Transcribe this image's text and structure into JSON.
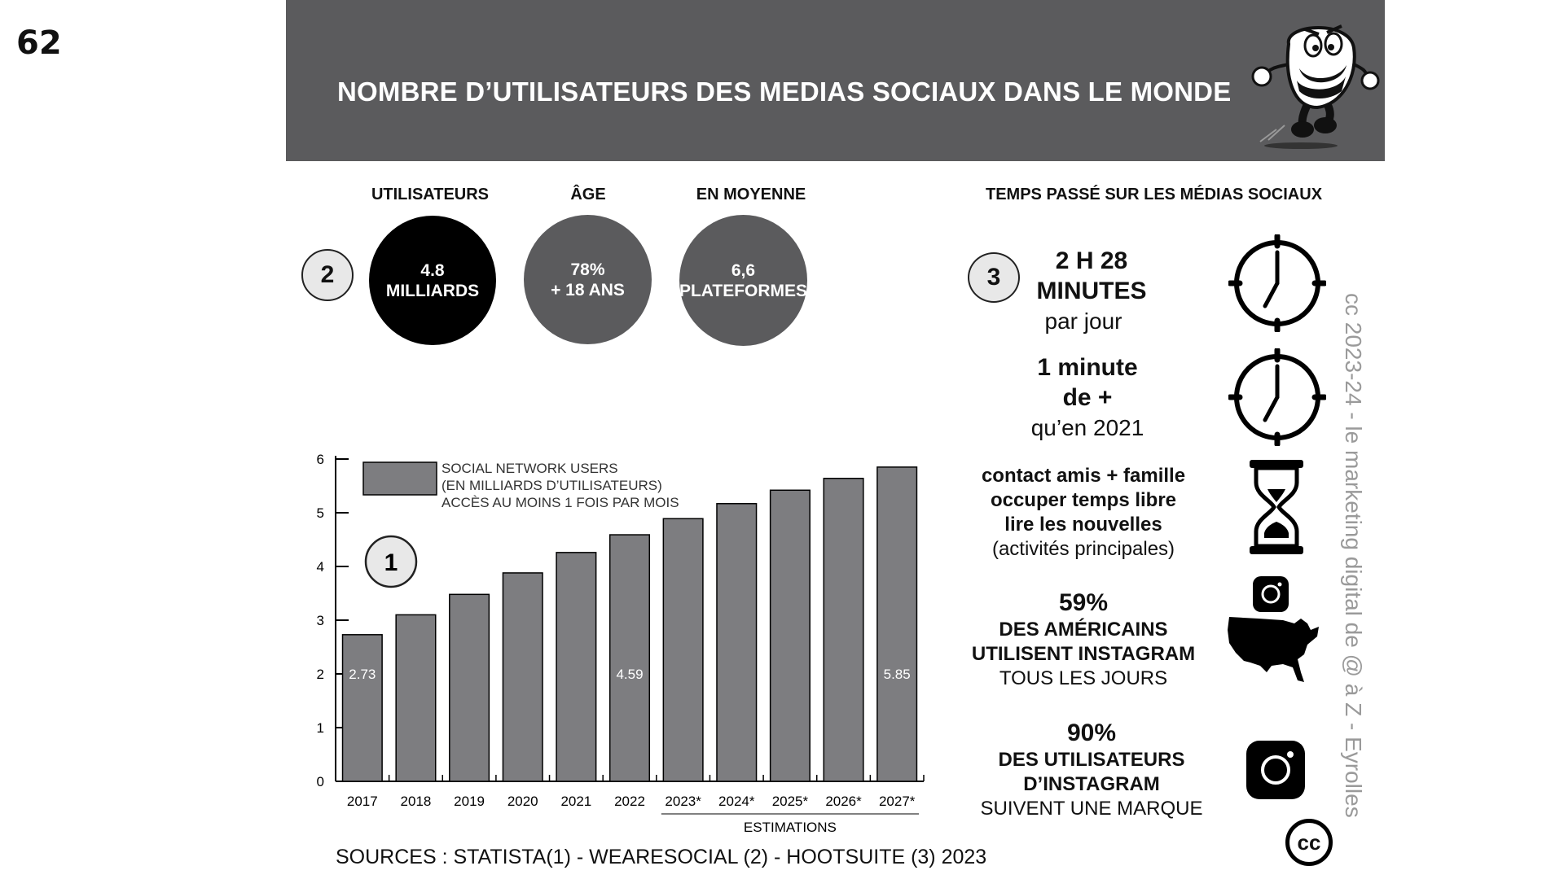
{
  "page_number": "62",
  "header": {
    "title": "NOMBRE D’UTILISATEURS DES MEDIAS SOCIAUX DANS LE MONDE"
  },
  "stats": {
    "badge": "2",
    "items": [
      {
        "label": "UTILISATEURS",
        "line1": "4.8",
        "line2": "MILLIARDS",
        "color": "#000000"
      },
      {
        "label": "ÂGE",
        "line1": "78%",
        "line2": "+ 18 ANS",
        "color": "#5b5b5d"
      },
      {
        "label": "EN MOYENNE",
        "line1": "6,6",
        "line2": "PLATEFORMES",
        "color": "#5b5b5d"
      }
    ]
  },
  "time": {
    "title": "TEMPS PASSÉ SUR LES MÉDIAS SOCIAUX",
    "badge": "3",
    "block1": {
      "line1": "2 H 28",
      "line2": "MINUTES",
      "line3": "par jour",
      "icon": "clock-icon"
    },
    "block2": {
      "line1": "1 minute",
      "line2": "de +",
      "line3": "qu’en 2021",
      "icon": "clock-icon"
    },
    "block3": {
      "line1": "contact amis + famille",
      "line2": "occuper temps libre",
      "line3": "lire les nouvelles",
      "line4": "(activités principales)",
      "icon": "hourglass-icon"
    },
    "block4": {
      "line1": "59%",
      "line2": "DES AMÉRICAINS",
      "line3": "UTILISENT INSTAGRAM",
      "line4": "TOUS LES JOURS",
      "icons": [
        "instagram-icon",
        "usa-map-icon"
      ]
    },
    "block5": {
      "line1": "90%",
      "line2": "DES UTILISATEURS",
      "line3": "D’INSTAGRAM",
      "line4": "SUIVENT UNE MARQUE",
      "icon": "instagram-icon"
    }
  },
  "watermark": "cc 2023-24  - le marketing digital de @ à Z - Eyrolles",
  "cc_logo": "cc",
  "sources": "SOURCES : STATISTA(1) - WEARESOCIAL (2) - HOOTSUITE (3) 2023",
  "chart_data": {
    "type": "bar",
    "badge": "1",
    "categories": [
      "2017",
      "2018",
      "2019",
      "2020",
      "2021",
      "2022",
      "2023*",
      "2024*",
      "2025*",
      "2026*",
      "2027*"
    ],
    "series": [
      {
        "name": "SOCIAL NETWORK USERS (EN MILLIARDS D’UTILISATEURS) ACCÈS AU MOINS 1 FOIS PAR MOIS",
        "values": [
          2.73,
          3.1,
          3.48,
          3.88,
          4.26,
          4.59,
          4.89,
          5.17,
          5.42,
          5.64,
          5.85
        ]
      }
    ],
    "legend": [
      "SOCIAL NETWORK USERS",
      "(EN MILLIARDS D’UTILISATEURS)",
      "ACCÈS AU MOINS 1 FOIS PAR MOIS"
    ],
    "data_labels": {
      "0": "2.73",
      "5": "4.59",
      "10": "5.85"
    },
    "yticks": [
      "0",
      "1",
      "2",
      "3",
      "4",
      "5",
      "6"
    ],
    "ylim": [
      0,
      6
    ],
    "xgroup_label": "ESTIMATIONS",
    "bar_color": "#7d7d80",
    "grid": false,
    "legend_position": "top-left"
  }
}
